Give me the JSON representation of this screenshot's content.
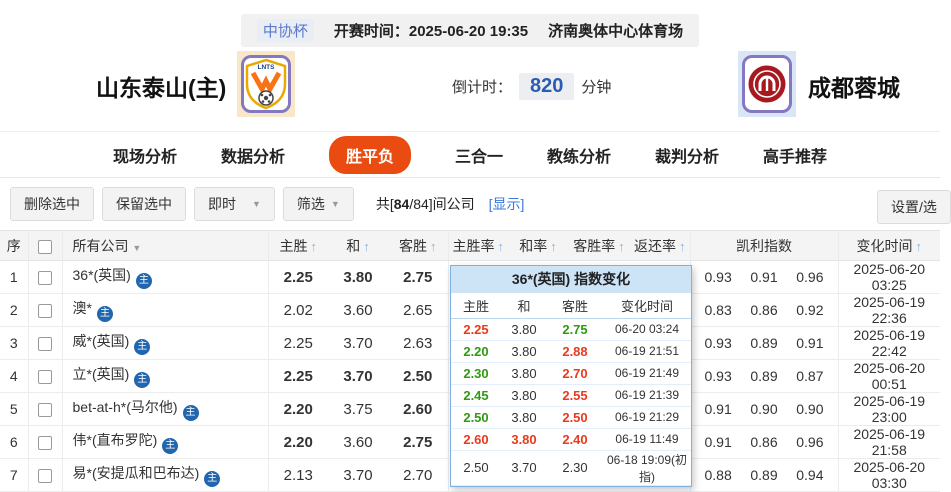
{
  "colors": {
    "green": "#2e9b12",
    "red": "#e93a1d",
    "link_blue": "#3a7ad9",
    "active_tab": "#ea4b10",
    "countdown_blue": "#2a5cb4",
    "badge_blue": "#2166ae"
  },
  "match_bar": {
    "league": "中协杯",
    "kickoff": "开赛时间：2025-06-20 19:35",
    "venue": "济南奥体中心体育场"
  },
  "teams": {
    "home_name": "山东泰山(主)",
    "home_logo_text": "LNTS",
    "away_name": "成都蓉城",
    "countdown_label": "倒计时：",
    "countdown_value": "820",
    "countdown_unit": "分钟"
  },
  "tabs": [
    {
      "label": "现场分析",
      "active": false
    },
    {
      "label": "数据分析",
      "active": false
    },
    {
      "label": "胜平负",
      "active": true
    },
    {
      "label": "三合一",
      "active": false
    },
    {
      "label": "教练分析",
      "active": false
    },
    {
      "label": "裁判分析",
      "active": false
    },
    {
      "label": "高手推荐",
      "active": false
    }
  ],
  "toolbar": {
    "delete_btn": "删除选中",
    "keep_btn": "保留选中",
    "instant_dropdown": "即时",
    "filter_dropdown": "筛选",
    "count_prefix": "共[",
    "count_bold": "84",
    "count_suffix": "/84]间公司",
    "show_link": "[显示]",
    "settings_btn": "设置/选"
  },
  "table": {
    "headers": {
      "seq": "序",
      "company": "所有公司",
      "home": "主胜",
      "draw": "和",
      "away": "客胜",
      "home_rate": "主胜率",
      "draw_rate": "和率",
      "away_rate": "客胜率",
      "return_rate": "返还率",
      "kelly": "凯利指数",
      "time": "变化时间"
    },
    "rows": [
      {
        "seq": "1",
        "company": "36*(英国)",
        "badge": "主",
        "odds": [
          {
            "v": "2.25",
            "c": "g"
          },
          {
            "v": "3.80",
            "c": "r"
          },
          {
            "v": "2.75",
            "c": "r"
          }
        ],
        "kelly": [
          "0.93",
          "0.91",
          "0.96"
        ],
        "time": "2025-06-20 03:25"
      },
      {
        "seq": "2",
        "company": "澳*",
        "badge": "主",
        "odds": [
          {
            "v": "2.02",
            "c": "n"
          },
          {
            "v": "3.60",
            "c": "n"
          },
          {
            "v": "2.65",
            "c": "n"
          }
        ],
        "kelly": [
          "0.83",
          "0.86",
          "0.92"
        ],
        "time": "2025-06-19 22:36"
      },
      {
        "seq": "3",
        "company": "威*(英国)",
        "badge": "主",
        "odds": [
          {
            "v": "2.25",
            "c": "n"
          },
          {
            "v": "3.70",
            "c": "n"
          },
          {
            "v": "2.63",
            "c": "n"
          }
        ],
        "kelly": [
          "0.93",
          "0.89",
          "0.91"
        ],
        "time": "2025-06-19 22:42"
      },
      {
        "seq": "4",
        "company": "立*(英国)",
        "badge": "主",
        "odds": [
          {
            "v": "2.25",
            "c": "g"
          },
          {
            "v": "3.70",
            "c": "g"
          },
          {
            "v": "2.50",
            "c": "r"
          }
        ],
        "kelly": [
          "0.93",
          "0.89",
          "0.87"
        ],
        "time": "2025-06-20 00:51"
      },
      {
        "seq": "5",
        "company": "bet-at-h*(马尔他)",
        "badge": "主",
        "odds": [
          {
            "v": "2.20",
            "c": "g"
          },
          {
            "v": "3.75",
            "c": "n"
          },
          {
            "v": "2.60",
            "c": "r"
          }
        ],
        "kelly": [
          "0.91",
          "0.90",
          "0.90"
        ],
        "time": "2025-06-19 23:00"
      },
      {
        "seq": "6",
        "company": "伟*(直布罗陀)",
        "badge": "主",
        "odds": [
          {
            "v": "2.20",
            "c": "g"
          },
          {
            "v": "3.60",
            "c": "n"
          },
          {
            "v": "2.75",
            "c": "r"
          }
        ],
        "kelly": [
          "0.91",
          "0.86",
          "0.96"
        ],
        "time": "2025-06-19 21:58"
      },
      {
        "seq": "7",
        "company": "易*(安提瓜和巴布达)",
        "badge": "主",
        "odds": [
          {
            "v": "2.13",
            "c": "n"
          },
          {
            "v": "3.70",
            "c": "n"
          },
          {
            "v": "2.70",
            "c": "n"
          }
        ],
        "kelly": [
          "0.88",
          "0.89",
          "0.94"
        ],
        "time": "2025-06-20 03:30"
      }
    ]
  },
  "popup": {
    "title": "36*(英国) 指数变化",
    "headers": {
      "home": "主胜",
      "draw": "和",
      "away": "客胜",
      "time": "变化时间"
    },
    "rows": [
      {
        "home": "2.25",
        "home_c": "r",
        "draw": "3.80",
        "draw_c": "n",
        "away": "2.75",
        "away_c": "g",
        "time": "06-20 03:24"
      },
      {
        "home": "2.20",
        "home_c": "g",
        "draw": "3.80",
        "draw_c": "n",
        "away": "2.88",
        "away_c": "r",
        "time": "06-19 21:51"
      },
      {
        "home": "2.30",
        "home_c": "g",
        "draw": "3.80",
        "draw_c": "n",
        "away": "2.70",
        "away_c": "r",
        "time": "06-19 21:49"
      },
      {
        "home": "2.45",
        "home_c": "g",
        "draw": "3.80",
        "draw_c": "n",
        "away": "2.55",
        "away_c": "r",
        "time": "06-19 21:39"
      },
      {
        "home": "2.50",
        "home_c": "g",
        "draw": "3.80",
        "draw_c": "n",
        "away": "2.50",
        "away_c": "r",
        "time": "06-19 21:29"
      },
      {
        "home": "2.60",
        "home_c": "r",
        "draw": "3.80",
        "draw_c": "r",
        "away": "2.40",
        "away_c": "r",
        "time": "06-19 11:49"
      },
      {
        "home": "2.50",
        "home_c": "n",
        "draw": "3.70",
        "draw_c": "n",
        "away": "2.30",
        "away_c": "n",
        "time": "06-18 19:09(初指)"
      }
    ]
  }
}
